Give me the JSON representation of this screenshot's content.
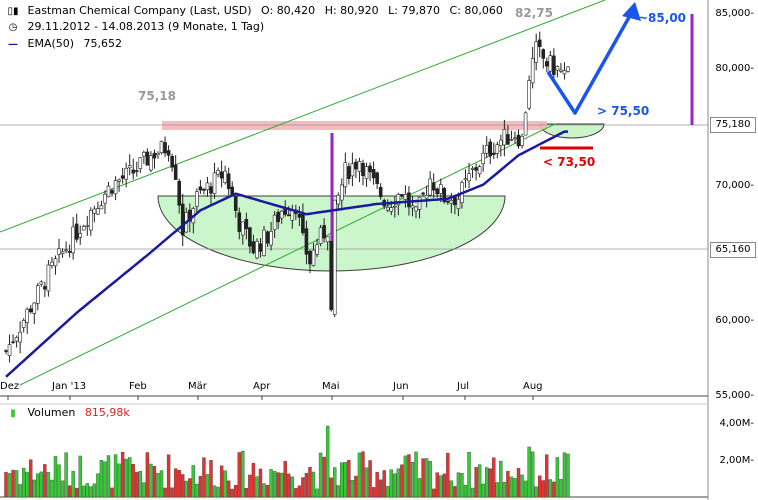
{
  "header": {
    "title": "Eastman Chemical Company (Last, USD)",
    "open_label": "O:",
    "open_value": "80,420",
    "high_label": "H:",
    "high_value": "80,920",
    "low_label": "L:",
    "low_value": "79,870",
    "close_label": "C:",
    "close_value": "80,060",
    "period": "29.11.2012 - 14.08.2013 (9 Monate, 1 Tag)",
    "ema_label": "EMA(50)",
    "ema_value": "75,652"
  },
  "volume_legend": {
    "label": "Volumen",
    "value": "815,98k"
  },
  "annotations": {
    "peak_high": "82,75",
    "resistance_label": "75,18",
    "target_up": "~85,00",
    "support_level": "> 75,50",
    "stop_level": "< 73,50",
    "resistance_box": "75,180",
    "support_box": "65,160"
  },
  "colors": {
    "up": "#33cc33",
    "down": "#e83030",
    "ema": "#1a1aa0",
    "channel": "#33aa33",
    "resistance_band": "#f3b6b6",
    "cup_fill": "#c9f5c9",
    "arrow": "#1a55ee",
    "stop": "#e00000",
    "vline": "#9922cc"
  },
  "chart_data": {
    "type": "candlestick",
    "y_ticks": [
      "85,000-",
      "80,000-",
      "75,000-",
      "70,000-",
      "65,000-",
      "60,000-",
      "55,000-"
    ],
    "ylim": [
      55,
      87
    ],
    "x_ticks": [
      "Dez",
      "Jan '13",
      "Feb",
      "Mär",
      "Apr",
      "Mai",
      "Jun",
      "Jul",
      "Aug"
    ],
    "volume_ticks": [
      "4,00M-",
      "2,00M-"
    ],
    "resistance": 75.18,
    "support": 65.16,
    "keypoints": [
      {
        "i": 0,
        "v": 58.5
      },
      {
        "i": 6,
        "v": 61.5
      },
      {
        "i": 12,
        "v": 64.5
      },
      {
        "i": 18,
        "v": 67
      },
      {
        "i": 24,
        "v": 69.5
      },
      {
        "i": 30,
        "v": 71.5
      },
      {
        "i": 36,
        "v": 72.5
      },
      {
        "i": 42,
        "v": 74
      },
      {
        "i": 46,
        "v": 74.5
      },
      {
        "i": 48,
        "v": 72.5
      },
      {
        "i": 50,
        "v": 68
      },
      {
        "i": 54,
        "v": 70.5
      },
      {
        "i": 58,
        "v": 71.5
      },
      {
        "i": 62,
        "v": 72.5
      },
      {
        "i": 66,
        "v": 68.5
      },
      {
        "i": 70,
        "v": 66.5
      },
      {
        "i": 74,
        "v": 67.5
      },
      {
        "i": 78,
        "v": 69.5
      },
      {
        "i": 82,
        "v": 70
      },
      {
        "i": 84,
        "v": 67
      },
      {
        "i": 86,
        "v": 65.5
      },
      {
        "i": 88,
        "v": 67
      },
      {
        "i": 92,
        "v": 68.5
      },
      {
        "i": 96,
        "v": 72.5
      },
      {
        "i": 100,
        "v": 73.5
      },
      {
        "i": 104,
        "v": 71.5
      },
      {
        "i": 108,
        "v": 70
      },
      {
        "i": 112,
        "v": 71
      },
      {
        "i": 116,
        "v": 69
      },
      {
        "i": 120,
        "v": 72
      },
      {
        "i": 124,
        "v": 70.5
      },
      {
        "i": 128,
        "v": 70.5
      },
      {
        "i": 132,
        "v": 72.5
      },
      {
        "i": 136,
        "v": 74
      },
      {
        "i": 140,
        "v": 75
      },
      {
        "i": 144,
        "v": 75.5
      },
      {
        "i": 146,
        "v": 75
      },
      {
        "i": 148,
        "v": 80
      },
      {
        "i": 150,
        "v": 82
      },
      {
        "i": 153,
        "v": 81
      },
      {
        "i": 156,
        "v": 80.5
      },
      {
        "i": 158,
        "v": 80.1
      }
    ],
    "ema_keypoints": [
      {
        "i": 0,
        "v": 56.5
      },
      {
        "i": 20,
        "v": 61.5
      },
      {
        "i": 40,
        "v": 66
      },
      {
        "i": 55,
        "v": 69.5
      },
      {
        "i": 65,
        "v": 70.8
      },
      {
        "i": 75,
        "v": 70
      },
      {
        "i": 85,
        "v": 69.2
      },
      {
        "i": 95,
        "v": 69.6
      },
      {
        "i": 105,
        "v": 70
      },
      {
        "i": 115,
        "v": 70.2
      },
      {
        "i": 125,
        "v": 70.4
      },
      {
        "i": 135,
        "v": 71.5
      },
      {
        "i": 145,
        "v": 73.8
      },
      {
        "i": 158,
        "v": 75.65
      }
    ]
  }
}
